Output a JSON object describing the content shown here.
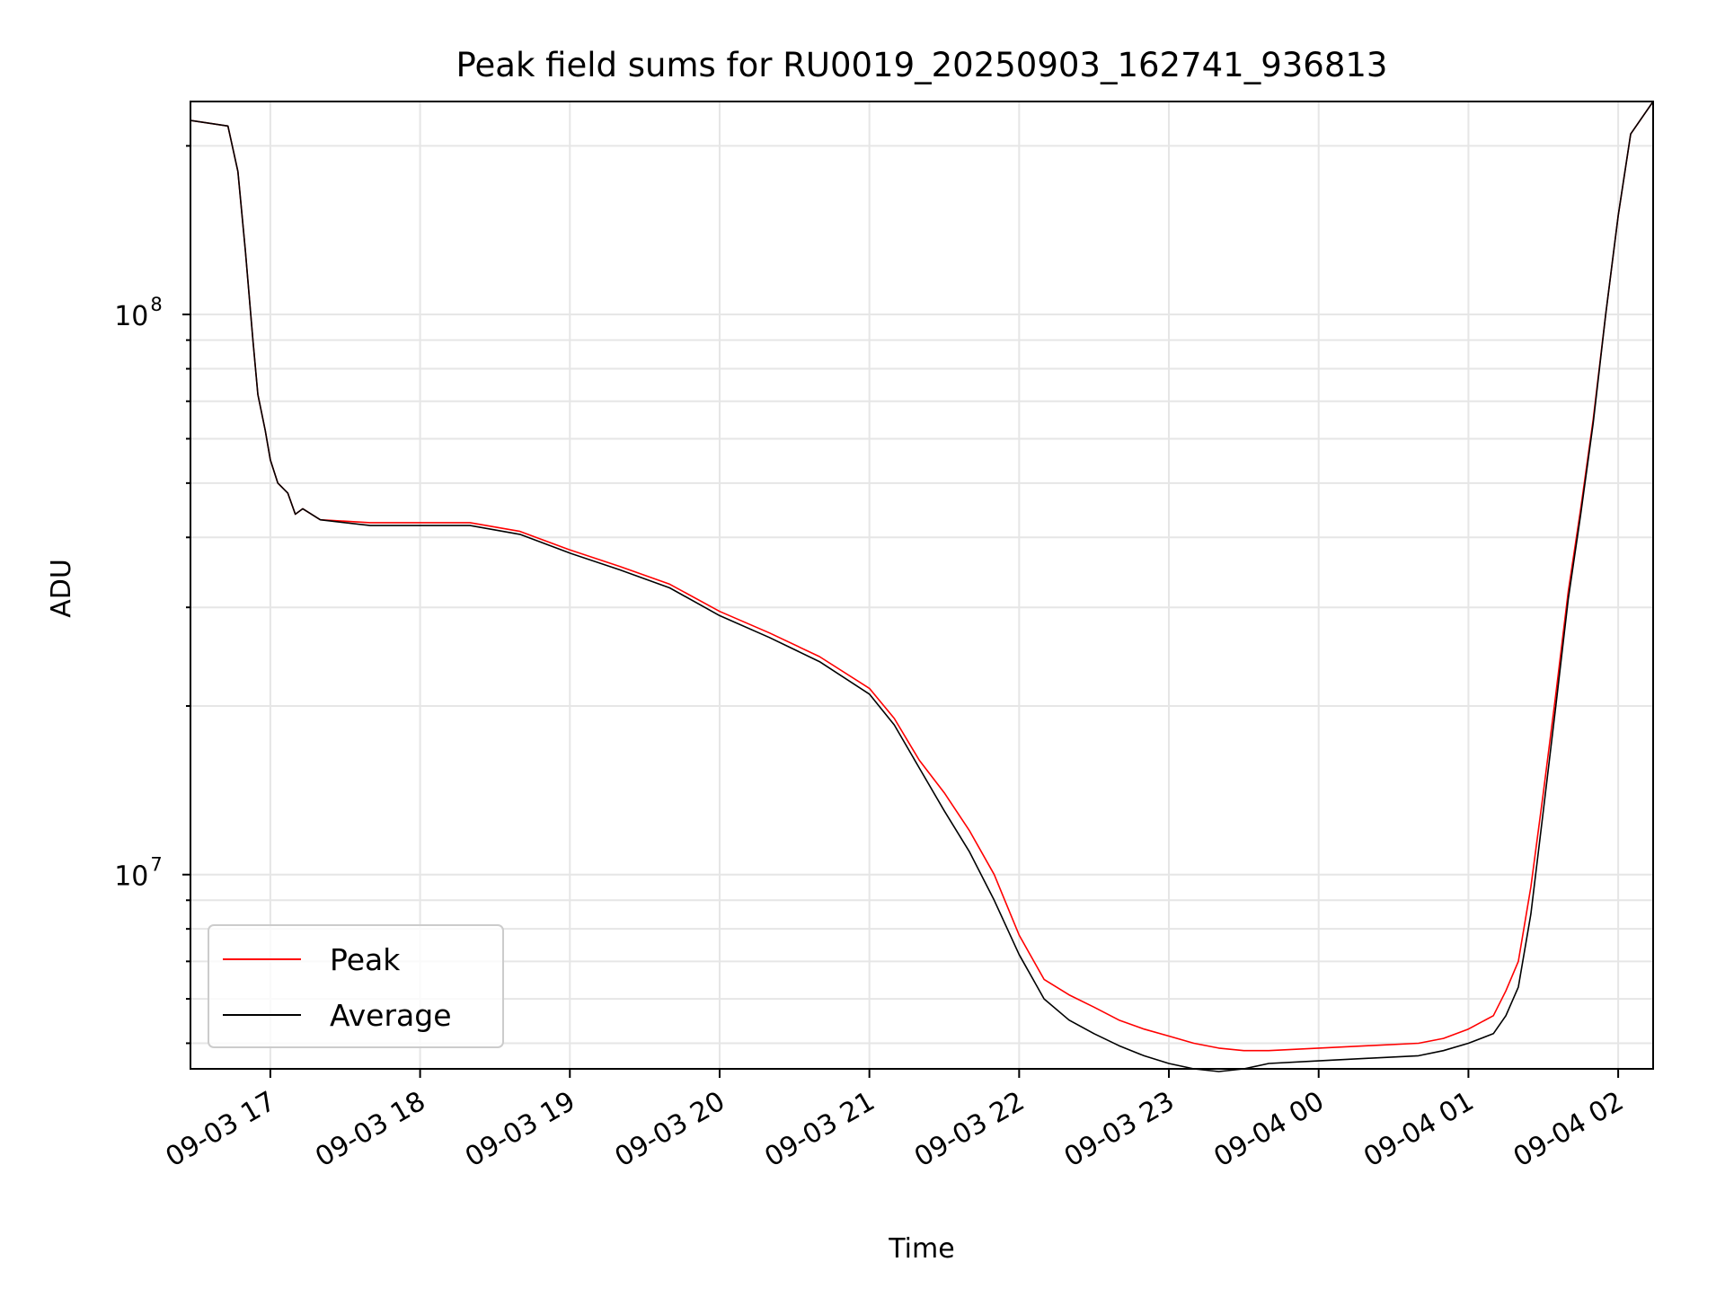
{
  "colors": {
    "peak": "#ff0000",
    "average": "#000000",
    "grid": "#e6e6e6",
    "axis": "#000000",
    "background": "#ffffff"
  },
  "chart_data": {
    "type": "line",
    "title": "Peak field sums for RU0019_20250903_162741_936813",
    "xlabel": "Time",
    "ylabel": "ADU",
    "yscale": "log",
    "ylim": [
      4500000,
      240000000
    ],
    "xlim": [
      "2025-09-03 16:28",
      "2025-09-04 02:14"
    ],
    "grid": true,
    "legend": "lower-left",
    "x_tick_labels": [
      "09-03 17",
      "09-03 18",
      "09-03 19",
      "09-03 20",
      "09-03 21",
      "09-03 22",
      "09-03 23",
      "09-04 00",
      "09-04 01",
      "09-04 02"
    ],
    "x_ticks": [
      "2025-09-03 17:00",
      "2025-09-03 18:00",
      "2025-09-03 19:00",
      "2025-09-03 20:00",
      "2025-09-03 21:00",
      "2025-09-03 22:00",
      "2025-09-03 23:00",
      "2025-09-04 00:00",
      "2025-09-04 01:00",
      "2025-09-04 02:00"
    ],
    "y_tick_labels": [
      {
        "value": 10000000,
        "base": "10",
        "exp": "7"
      },
      {
        "value": 100000000,
        "base": "10",
        "exp": "8"
      }
    ],
    "series": [
      {
        "name": "Peak",
        "color": "#ff0000",
        "x": [
          "2025-09-03 16:28",
          "2025-09-03 16:43",
          "2025-09-03 16:47",
          "2025-09-03 16:50",
          "2025-09-03 16:53",
          "2025-09-03 16:55",
          "2025-09-03 16:58",
          "2025-09-03 17:00",
          "2025-09-03 17:03",
          "2025-09-03 17:07",
          "2025-09-03 17:10",
          "2025-09-03 17:13",
          "2025-09-03 17:20",
          "2025-09-03 17:40",
          "2025-09-03 18:00",
          "2025-09-03 18:20",
          "2025-09-03 18:40",
          "2025-09-03 19:00",
          "2025-09-03 19:20",
          "2025-09-03 19:40",
          "2025-09-03 20:00",
          "2025-09-03 20:20",
          "2025-09-03 20:40",
          "2025-09-03 21:00",
          "2025-09-03 21:10",
          "2025-09-03 21:20",
          "2025-09-03 21:30",
          "2025-09-03 21:40",
          "2025-09-03 21:50",
          "2025-09-03 22:00",
          "2025-09-03 22:10",
          "2025-09-03 22:20",
          "2025-09-03 22:30",
          "2025-09-03 22:40",
          "2025-09-03 22:50",
          "2025-09-03 23:00",
          "2025-09-03 23:10",
          "2025-09-03 23:20",
          "2025-09-03 23:30",
          "2025-09-03 23:40",
          "2025-09-04 00:00",
          "2025-09-04 00:20",
          "2025-09-04 00:40",
          "2025-09-04 00:50",
          "2025-09-04 01:00",
          "2025-09-04 01:10",
          "2025-09-04 01:15",
          "2025-09-04 01:20",
          "2025-09-04 01:25",
          "2025-09-04 01:30",
          "2025-09-04 01:35",
          "2025-09-04 01:40",
          "2025-09-04 01:45",
          "2025-09-04 01:50",
          "2025-09-04 01:55",
          "2025-09-04 02:00",
          "2025-09-04 02:05",
          "2025-09-04 02:14"
        ],
        "values": [
          222000000,
          217000000,
          180000000,
          130000000,
          90000000,
          72000000,
          62000000,
          55000000,
          50000000,
          48000000,
          44000000,
          45000000,
          43000000,
          42500000,
          42500000,
          42500000,
          41000000,
          38000000,
          35500000,
          33000000,
          29500000,
          27000000,
          24500000,
          21500000,
          19000000,
          16000000,
          14000000,
          12000000,
          10000000,
          7800000,
          6500000,
          6100000,
          5800000,
          5500000,
          5300000,
          5150000,
          5000000,
          4900000,
          4850000,
          4850000,
          4900000,
          4950000,
          5000000,
          5100000,
          5300000,
          5600000,
          6200000,
          7000000,
          9500000,
          14000000,
          21000000,
          32000000,
          45000000,
          65000000,
          100000000,
          150000000,
          210000000,
          240000000
        ]
      },
      {
        "name": "Average",
        "color": "#000000",
        "x": [
          "2025-09-03 16:28",
          "2025-09-03 16:43",
          "2025-09-03 16:47",
          "2025-09-03 16:50",
          "2025-09-03 16:53",
          "2025-09-03 16:55",
          "2025-09-03 16:58",
          "2025-09-03 17:00",
          "2025-09-03 17:03",
          "2025-09-03 17:07",
          "2025-09-03 17:10",
          "2025-09-03 17:13",
          "2025-09-03 17:20",
          "2025-09-03 17:40",
          "2025-09-03 18:00",
          "2025-09-03 18:20",
          "2025-09-03 18:40",
          "2025-09-03 19:00",
          "2025-09-03 19:20",
          "2025-09-03 19:40",
          "2025-09-03 20:00",
          "2025-09-03 20:20",
          "2025-09-03 20:40",
          "2025-09-03 21:00",
          "2025-09-03 21:10",
          "2025-09-03 21:20",
          "2025-09-03 21:30",
          "2025-09-03 21:40",
          "2025-09-03 21:50",
          "2025-09-03 22:00",
          "2025-09-03 22:10",
          "2025-09-03 22:20",
          "2025-09-03 22:30",
          "2025-09-03 22:40",
          "2025-09-03 22:50",
          "2025-09-03 23:00",
          "2025-09-03 23:10",
          "2025-09-03 23:20",
          "2025-09-03 23:30",
          "2025-09-03 23:40",
          "2025-09-04 00:00",
          "2025-09-04 00:20",
          "2025-09-04 00:40",
          "2025-09-04 00:50",
          "2025-09-04 01:00",
          "2025-09-04 01:10",
          "2025-09-04 01:15",
          "2025-09-04 01:20",
          "2025-09-04 01:25",
          "2025-09-04 01:30",
          "2025-09-04 01:35",
          "2025-09-04 01:40",
          "2025-09-04 01:45",
          "2025-09-04 01:50",
          "2025-09-04 01:55",
          "2025-09-04 02:00",
          "2025-09-04 02:05",
          "2025-09-04 02:14"
        ],
        "values": [
          222000000,
          217000000,
          180000000,
          130000000,
          90000000,
          72000000,
          62000000,
          55000000,
          50000000,
          48000000,
          44000000,
          45000000,
          43000000,
          42000000,
          42000000,
          42000000,
          40500000,
          37500000,
          35000000,
          32500000,
          29000000,
          26500000,
          24000000,
          21000000,
          18500000,
          15500000,
          13000000,
          11000000,
          9000000,
          7200000,
          6000000,
          5500000,
          5200000,
          4950000,
          4750000,
          4600000,
          4500000,
          4450000,
          4500000,
          4600000,
          4650000,
          4700000,
          4750000,
          4850000,
          5000000,
          5200000,
          5600000,
          6300000,
          8500000,
          13000000,
          20000000,
          31000000,
          44000000,
          64000000,
          100000000,
          150000000,
          210000000,
          240000000
        ]
      }
    ]
  }
}
